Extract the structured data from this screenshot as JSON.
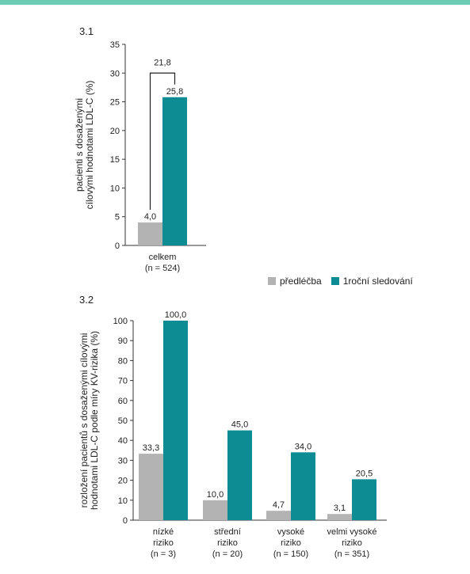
{
  "colors": {
    "top_bar": "#6ccbb5",
    "pre": "#b3b3b3",
    "post": "#0e8c94"
  },
  "legend": {
    "pre_label": "předléčba",
    "post_label": "1roční sledování"
  },
  "chart_data": [
    {
      "panel_label": "3.1",
      "type": "bar",
      "ylabel_lines": [
        "pacienti s dosaženými",
        "cílovými hodnotami LDL-C  (%)"
      ],
      "ylim": [
        0,
        35
      ],
      "yticks": [
        0,
        5,
        10,
        15,
        20,
        25,
        30,
        35
      ],
      "categories": [
        [
          "celkem",
          "(n = 524)"
        ]
      ],
      "series": [
        {
          "name": "předléčba",
          "values": [
            4.0
          ],
          "labels": [
            "4,0"
          ]
        },
        {
          "name": "1roční sledování",
          "values": [
            25.8
          ],
          "labels": [
            "25,8"
          ]
        }
      ],
      "bracket": {
        "label": "21,8",
        "from_value": 4.0,
        "to_value": 25.8,
        "top_value": 30
      }
    },
    {
      "panel_label": "3.2",
      "type": "bar",
      "ylabel_lines": [
        "rozložení pacientů s dosaženými cílovými",
        "hodnotami LDL-C podle míry KV-rizika (%)"
      ],
      "ylim": [
        0,
        100
      ],
      "yticks": [
        0,
        10,
        20,
        30,
        40,
        50,
        60,
        70,
        80,
        90,
        100
      ],
      "categories": [
        [
          "nízké",
          "riziko",
          "(n = 3)"
        ],
        [
          "střední",
          "riziko",
          "(n = 20)"
        ],
        [
          "vysoké",
          "riziko",
          "(n = 150)"
        ],
        [
          "velmi vysoké",
          "riziko",
          "(n = 351)"
        ]
      ],
      "series": [
        {
          "name": "předléčba",
          "values": [
            33.3,
            10.0,
            4.7,
            3.1
          ],
          "labels": [
            "33,3",
            "10,0",
            "4,7",
            "3,1"
          ]
        },
        {
          "name": "1roční sledování",
          "values": [
            100.0,
            45.0,
            34.0,
            20.5
          ],
          "labels": [
            "100,0",
            "45,0",
            "34,0",
            "20,5"
          ]
        }
      ]
    }
  ]
}
